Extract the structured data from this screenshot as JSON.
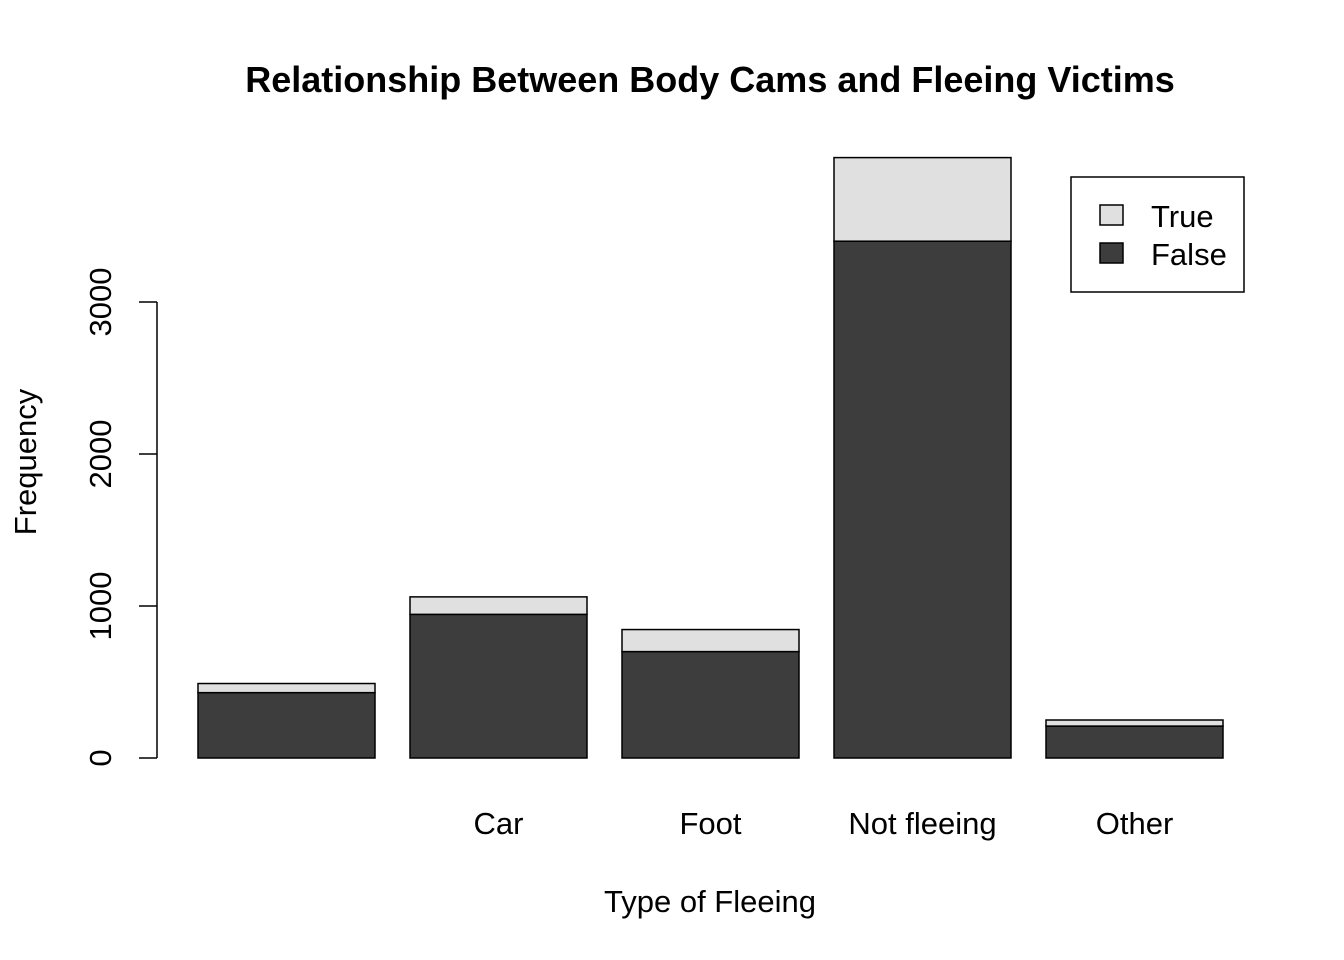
{
  "chart_data": {
    "type": "bar",
    "stacked": true,
    "title": "Relationship Between Body Cams and Fleeing Victims",
    "xlabel": "Type of Fleeing",
    "ylabel": "Frequency",
    "categories": [
      "",
      "Car",
      "Foot",
      "Not fleeing",
      "Other"
    ],
    "series": [
      {
        "name": "False",
        "values": [
          430,
          945,
          700,
          3400,
          210
        ],
        "color": "#3d3d3d"
      },
      {
        "name": "True",
        "values": [
          60,
          115,
          145,
          550,
          40
        ],
        "color": "#e0e0e0"
      }
    ],
    "yticks": [
      0,
      1000,
      2000,
      3000
    ],
    "ylim": [
      0,
      3950
    ],
    "grid": false,
    "legend": {
      "placement": "top-right",
      "entries": [
        "True",
        "False"
      ]
    }
  }
}
